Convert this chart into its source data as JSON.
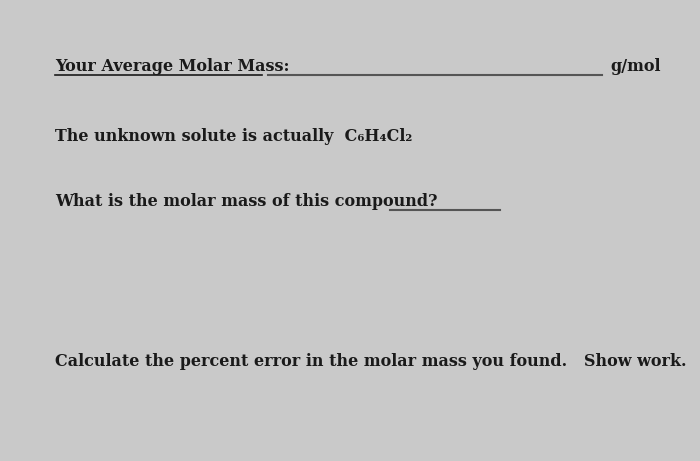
{
  "bg_color": "#c9c9c9",
  "text_color": "#1a1a1a",
  "line1_label": "Your Average Molar Mass:",
  "line1_unit": "g/mol",
  "line2_prefix": "The unknown solute is actually  C",
  "line2_formula": "C₆H₄Cl₂",
  "line3": "What is the molar mass of this compound?",
  "line4": "Calculate the percent error in the molar mass you found.   Show work.",
  "fontsize_main": 11.5
}
